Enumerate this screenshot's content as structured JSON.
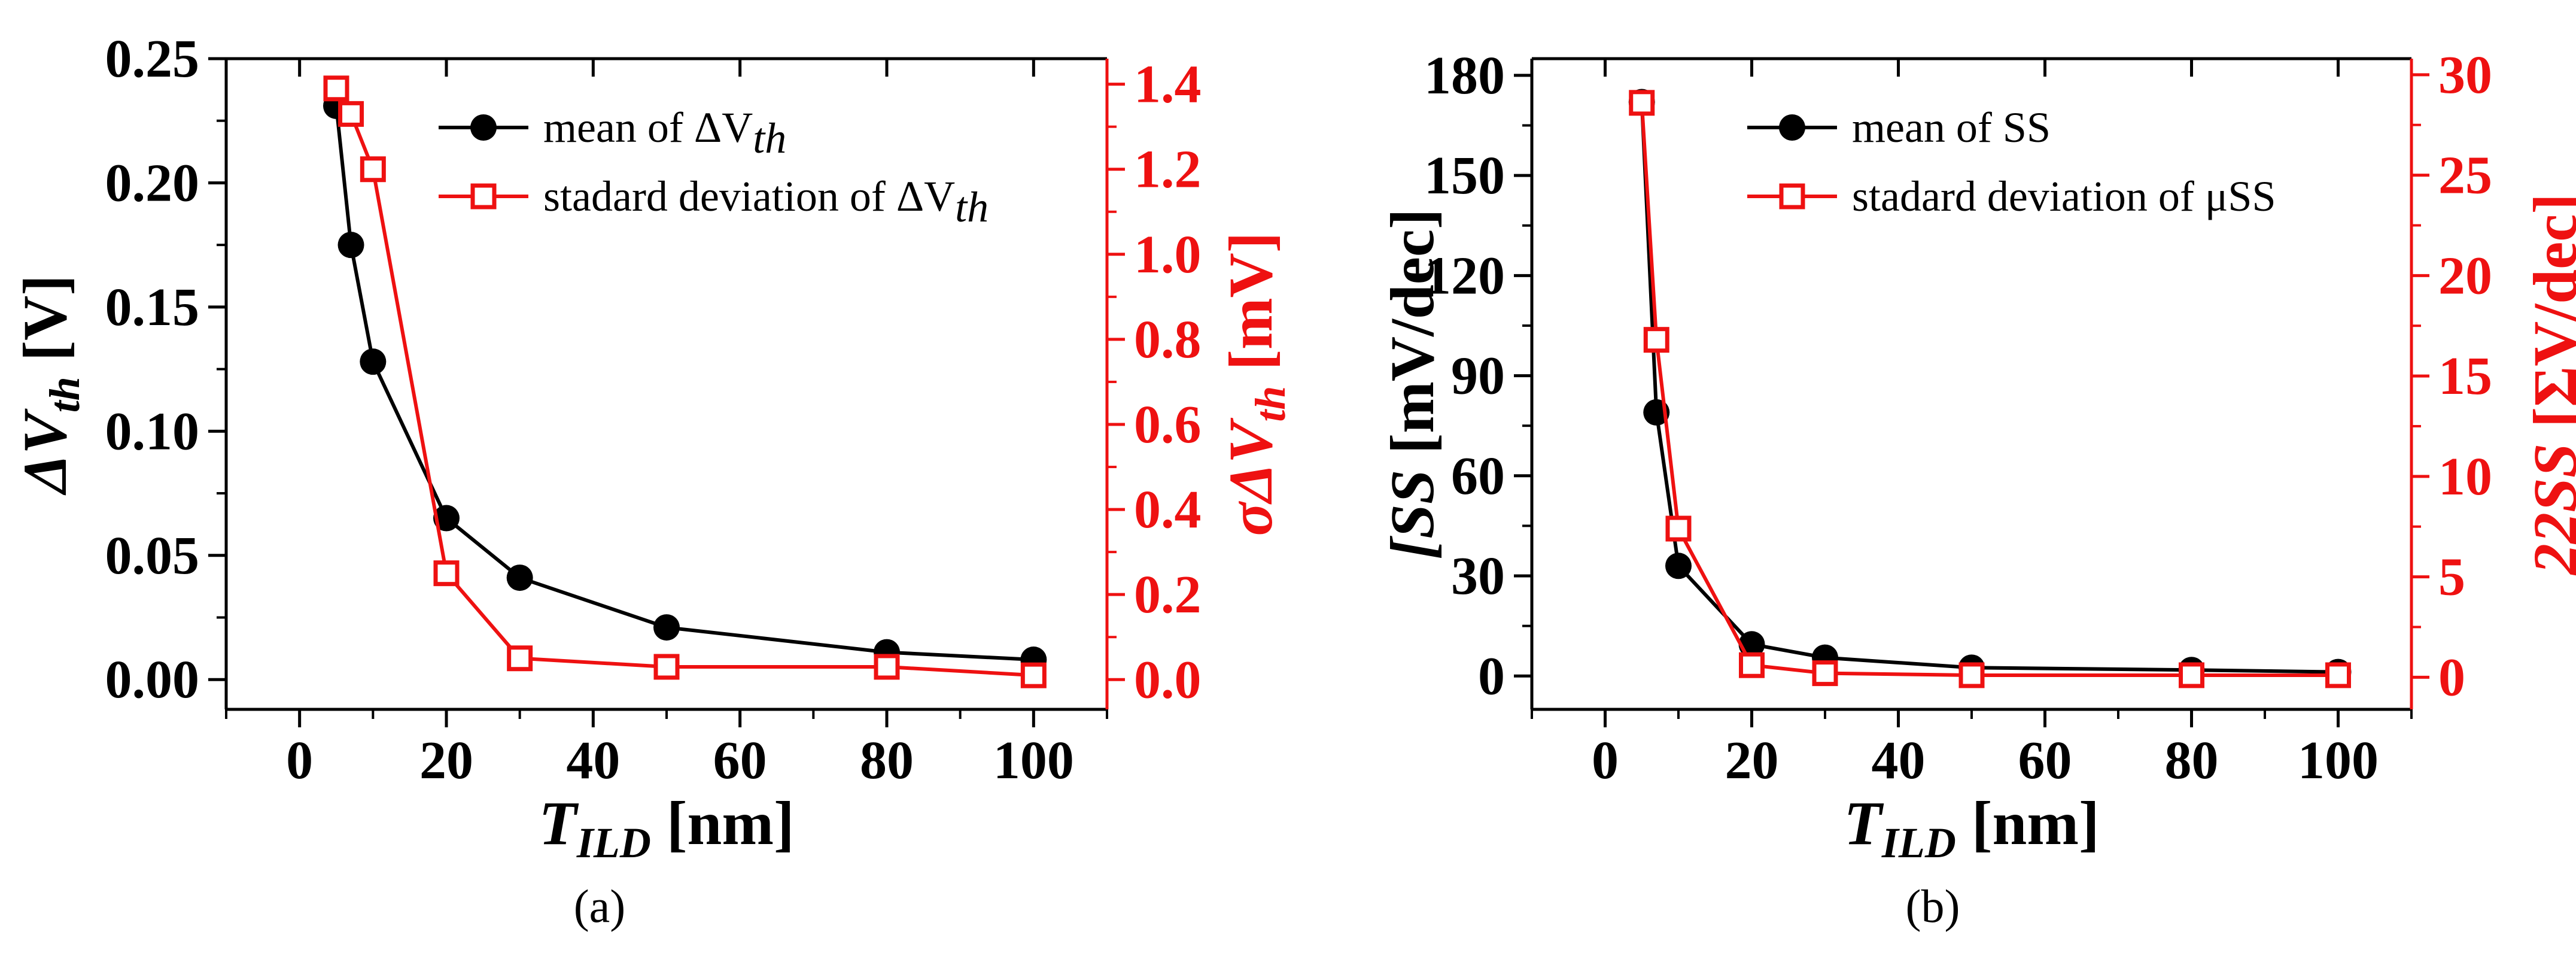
{
  "colors": {
    "black_series": "#000000",
    "red_series": "#ee1111",
    "axis": "#000000",
    "red_axis": "#ee1111"
  },
  "chart_data": [
    {
      "id": "a",
      "type": "line",
      "caption": "(a)",
      "x_axis": {
        "label_main": "T",
        "label_sub": "ILD",
        "label_unit": " [nm]",
        "range": [
          -10,
          110
        ],
        "ticks": [
          0,
          20,
          40,
          60,
          80,
          100
        ],
        "tick_labels": [
          "0",
          "20",
          "40",
          "60",
          "80",
          "100"
        ]
      },
      "y_left": {
        "label_prefix": "ΔV",
        "label_sub": "th",
        "label_unit": " [V]",
        "range": [
          -0.012,
          0.25
        ],
        "ticks": [
          0.0,
          0.05,
          0.1,
          0.15,
          0.2,
          0.25
        ],
        "tick_labels": [
          "0.00",
          "0.05",
          "0.10",
          "0.15",
          "0.20",
          "0.25"
        ]
      },
      "y_right": {
        "label_prefix": "σΔV",
        "label_sub": "th",
        "label_unit": " [mV]",
        "range": [
          -0.07,
          1.46
        ],
        "ticks": [
          0.0,
          0.2,
          0.4,
          0.6,
          0.8,
          1.0,
          1.2,
          1.4
        ],
        "tick_labels": [
          "0.0",
          "0.2",
          "0.4",
          "0.6",
          "0.8",
          "1.0",
          "1.2",
          "1.4"
        ]
      },
      "legend": {
        "position": "top-right",
        "entries": [
          {
            "text": "mean of ΔV",
            "sub": "th"
          },
          {
            "text": "stadard deviation of ΔV",
            "sub": "th"
          }
        ]
      },
      "series": [
        {
          "name": "mean of ΔVth",
          "axis": "left",
          "marker": "filled-circle",
          "x": [
            5,
            7,
            10,
            20,
            30,
            50,
            80,
            100
          ],
          "y": [
            0.231,
            0.175,
            0.128,
            0.065,
            0.041,
            0.021,
            0.011,
            0.008
          ]
        },
        {
          "name": "stadard deviation of ΔVth",
          "axis": "right",
          "marker": "open-square",
          "x": [
            5,
            7,
            10,
            20,
            30,
            50,
            80,
            100
          ],
          "y": [
            1.39,
            1.33,
            1.2,
            0.25,
            0.05,
            0.03,
            0.03,
            0.01
          ]
        }
      ]
    },
    {
      "id": "b",
      "type": "line",
      "caption": "(b)",
      "x_axis": {
        "label_main": "T",
        "label_sub": "ILD",
        "label_unit": " [nm]",
        "range": [
          -10,
          110
        ],
        "ticks": [
          0,
          20,
          40,
          60,
          80,
          100
        ],
        "tick_labels": [
          "0",
          "20",
          "40",
          "60",
          "80",
          "100"
        ]
      },
      "y_left": {
        "label_prefix": "[SS",
        "label_sub": "",
        "label_unit": " [mV/dec]",
        "range": [
          -10,
          185
        ],
        "ticks": [
          0,
          30,
          60,
          90,
          120,
          150,
          180
        ],
        "tick_labels": [
          "0",
          "30",
          "60",
          "90",
          "120",
          "150",
          "180"
        ]
      },
      "y_right": {
        "label_prefix": "22SS",
        "label_sub": "",
        "label_unit": " [ΣV/dec]",
        "range": [
          -1.6,
          30.8
        ],
        "ticks": [
          0,
          5,
          10,
          15,
          20,
          25,
          30
        ],
        "tick_labels": [
          "0",
          "5",
          "10",
          "15",
          "20",
          "25",
          "30"
        ]
      },
      "legend": {
        "position": "top-right",
        "entries": [
          {
            "text": "mean of   SS",
            "sub": ""
          },
          {
            "text": "stadard deviation of μSS",
            "sub": ""
          }
        ]
      },
      "series": [
        {
          "name": "mean of SS",
          "axis": "left",
          "marker": "filled-circle",
          "x": [
            5,
            7,
            10,
            20,
            30,
            50,
            80,
            100
          ],
          "y": [
            172,
            79,
            33,
            9.5,
            5.5,
            2.5,
            1.8,
            1.2
          ]
        },
        {
          "name": "stadard deviation of μSS",
          "axis": "right",
          "marker": "open-square",
          "x": [
            5,
            7,
            10,
            20,
            30,
            50,
            80,
            100
          ],
          "y": [
            28.6,
            16.8,
            7.4,
            0.6,
            0.2,
            0.1,
            0.1,
            0.1
          ]
        }
      ]
    }
  ]
}
